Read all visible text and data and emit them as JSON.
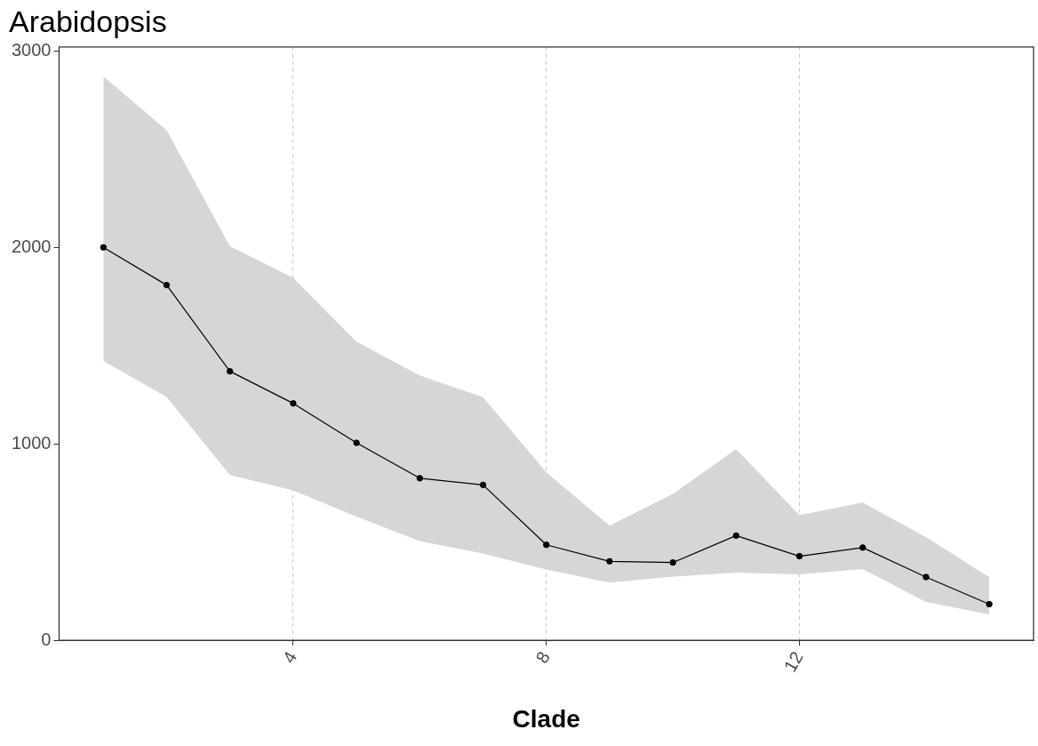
{
  "chart_data": {
    "type": "line",
    "title": "Arabidopsis",
    "xlabel": "Clade",
    "x": [
      1,
      2,
      3,
      4,
      5,
      6,
      7,
      8,
      9,
      10,
      11,
      12,
      13,
      14,
      15
    ],
    "series": [
      {
        "color": "#000000",
        "values": [
          2000,
          1808,
          1369,
          1206,
          1005,
          825,
          791,
          486,
          402,
          396,
          533,
          428,
          472,
          322,
          184
        ],
        "lower": [
          1422,
          1238,
          841,
          763,
          630,
          505,
          442,
          360,
          294,
          324,
          344,
          336,
          363,
          195,
          132
        ],
        "upper": [
          2870,
          2596,
          2005,
          1845,
          1520,
          1348,
          1237,
          855,
          583,
          745,
          973,
          638,
          701,
          525,
          321
        ]
      }
    ],
    "xlim": [
      0.3,
      15.7
    ],
    "xticks": [
      4,
      8,
      12
    ],
    "ylim": [
      0,
      3020
    ],
    "yticks": [
      0,
      1000,
      2000,
      3000
    ],
    "grid": "x",
    "marker": "circle",
    "line_style": "solid",
    "legend": false
  }
}
